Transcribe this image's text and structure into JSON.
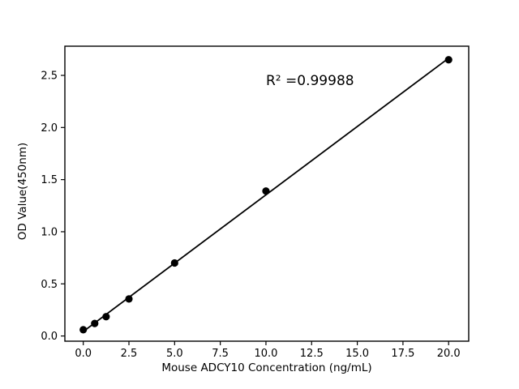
{
  "figure": {
    "background_color": "#ffffff",
    "foreground_color": "#000000"
  },
  "chart_data": {
    "type": "scatter",
    "title": "",
    "xlabel": "Mouse ADCY10 Concentration (ng/mL)",
    "ylabel": "OD Value(450nm)",
    "annotation": "R² =0.99988",
    "x": [
      0,
      0.625,
      1.25,
      2.5,
      5,
      10,
      20
    ],
    "y": [
      0.06,
      0.12,
      0.185,
      0.355,
      0.7,
      1.39,
      2.65
    ],
    "fit": {
      "slope": 0.1311,
      "intercept": 0.043,
      "r_squared": 0.99988
    },
    "xlim": [
      -1.007,
      21.1
    ],
    "ylim": [
      -0.05,
      2.78
    ],
    "x_ticks": [
      0.0,
      2.5,
      5.0,
      7.5,
      10.0,
      12.5,
      15.0,
      17.5,
      20.0
    ],
    "y_ticks": [
      0.0,
      0.5,
      1.0,
      1.5,
      2.0,
      2.5
    ],
    "tick_decimals": 1,
    "grid": false,
    "legend": null,
    "point_color": "#000000",
    "line_color": "#000000",
    "marker_radius": 4.6
  }
}
